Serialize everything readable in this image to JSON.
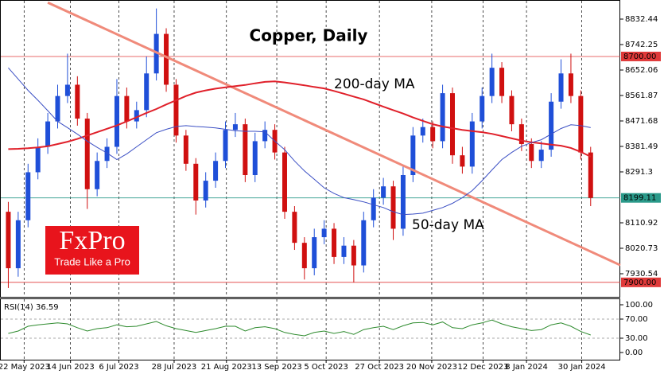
{
  "logo": {
    "brand": "FxPro",
    "tagline": "Trade Like a Pro"
  },
  "chart_data": [
    {
      "type": "candlestick",
      "title": "Copper, Daily",
      "up_color": "#1f4fd8",
      "down_color": "#d01010",
      "open": [
        8150,
        7950,
        8120,
        8290,
        8380,
        8470,
        8560,
        8600,
        8480,
        8230,
        8330,
        8380,
        8560,
        8470,
        8510,
        8640,
        8780,
        8600,
        8420,
        8320,
        8190,
        8260,
        8330,
        8440,
        8460,
        8280,
        8400,
        8440,
        8360,
        8150,
        8040,
        7950,
        8060,
        8090,
        7990,
        8030,
        7960,
        8120,
        8200,
        8240,
        8090,
        8280,
        8420,
        8450,
        8400,
        8570,
        8350,
        8310,
        8470,
        8560,
        8660,
        8560,
        8460,
        8390,
        8330,
        8370,
        8540,
        8640,
        8560,
        8360
      ],
      "high": [
        8185,
        8150,
        8320,
        8410,
        8500,
        8600,
        8710,
        8630,
        8500,
        8360,
        8410,
        8620,
        8590,
        8540,
        8700,
        8870,
        8800,
        8620,
        8440,
        8340,
        8290,
        8360,
        8470,
        8500,
        8480,
        8430,
        8470,
        8460,
        8380,
        8170,
        8060,
        8090,
        8120,
        8110,
        8060,
        8050,
        8150,
        8230,
        8270,
        8260,
        8310,
        8450,
        8480,
        8470,
        8600,
        8590,
        8380,
        8500,
        8590,
        8710,
        8680,
        8580,
        8480,
        8410,
        8400,
        8570,
        8690,
        8710,
        8580,
        8380
      ],
      "low": [
        7880,
        7920,
        8095,
        8265,
        8355,
        8445,
        8535,
        8455,
        8160,
        8205,
        8305,
        8355,
        8445,
        8445,
        8485,
        8615,
        8575,
        8395,
        8295,
        8140,
        8165,
        8235,
        8305,
        8415,
        8255,
        8255,
        8375,
        8335,
        8125,
        8015,
        7910,
        7925,
        8035,
        7965,
        7965,
        7900,
        7935,
        8095,
        8175,
        8050,
        8065,
        8255,
        8395,
        8375,
        8375,
        8320,
        8285,
        8285,
        8445,
        8535,
        8535,
        8435,
        8365,
        8305,
        8305,
        8345,
        8515,
        8535,
        8335,
        8170
      ],
      "close": [
        7950,
        8120,
        8290,
        8380,
        8470,
        8560,
        8600,
        8480,
        8230,
        8330,
        8380,
        8560,
        8470,
        8510,
        8640,
        8780,
        8600,
        8420,
        8320,
        8190,
        8260,
        8330,
        8440,
        8460,
        8280,
        8400,
        8440,
        8360,
        8150,
        8040,
        7950,
        8060,
        8090,
        7990,
        8030,
        7960,
        8120,
        8200,
        8240,
        8090,
        8280,
        8420,
        8450,
        8400,
        8570,
        8350,
        8310,
        8470,
        8560,
        8660,
        8560,
        8460,
        8390,
        8330,
        8370,
        8540,
        8640,
        8560,
        8360,
        8199.11
      ],
      "series": [
        {
          "name": "200-day MA",
          "color": "#e0202a",
          "values": [
            8372,
            8373,
            8375,
            8378,
            8382,
            8390,
            8398,
            8408,
            8420,
            8432,
            8444,
            8456,
            8470,
            8485,
            8500,
            8514,
            8530,
            8545,
            8560,
            8572,
            8580,
            8586,
            8591,
            8595,
            8599,
            8605,
            8610,
            8612,
            8608,
            8603,
            8598,
            8592,
            8587,
            8578,
            8568,
            8558,
            8548,
            8535,
            8522,
            8510,
            8498,
            8484,
            8472,
            8460,
            8452,
            8446,
            8440,
            8436,
            8432,
            8426,
            8418,
            8410,
            8402,
            8396,
            8392,
            8388,
            8384,
            8376,
            8362,
            8345
          ]
        },
        {
          "name": "50-day MA",
          "color": "#3b4fc4",
          "values": [
            8660,
            8620,
            8580,
            8545,
            8508,
            8470,
            8448,
            8425,
            8400,
            8378,
            8358,
            8335,
            8355,
            8380,
            8405,
            8430,
            8442,
            8452,
            8455,
            8452,
            8450,
            8447,
            8442,
            8437,
            8435,
            8435,
            8433,
            8400,
            8370,
            8330,
            8295,
            8265,
            8235,
            8215,
            8200,
            8193,
            8185,
            8175,
            8165,
            8150,
            8140,
            8142,
            8145,
            8155,
            8165,
            8180,
            8200,
            8225,
            8260,
            8298,
            8335,
            8360,
            8382,
            8395,
            8405,
            8425,
            8445,
            8458,
            8455,
            8448
          ]
        }
      ],
      "trendline": {
        "x": [
          4.0,
          62.0
        ],
        "values": [
          8891,
          7961
        ],
        "color": "#f08a7a"
      },
      "levels": [
        {
          "value": 8700,
          "label": "8700.00",
          "color": "#e03a3a"
        },
        {
          "value": 8199.11,
          "label": "8199.11",
          "color": "#2a9a8a"
        },
        {
          "value": 7900,
          "label": "7900.00",
          "color": "#e03a3a"
        }
      ],
      "xlim": [
        -0.6,
        62
      ],
      "ylim": [
        7851.6,
        8891.6
      ],
      "yticks": [
        8832.44,
        8742.25,
        8652.06,
        8561.87,
        8471.68,
        8381.49,
        8291.3,
        8110.92,
        8020.73,
        7930.54
      ],
      "xticks": [
        {
          "value": 1.6,
          "label": "22 May 2023"
        },
        {
          "value": 6.3,
          "label": "14 Jun 2023"
        },
        {
          "value": 11.2,
          "label": "6 Jul 2023"
        },
        {
          "value": 16.8,
          "label": "28 Jul 2023"
        },
        {
          "value": 22.1,
          "label": "21 Aug 2023"
        },
        {
          "value": 27.2,
          "label": "13 Sep 2023"
        },
        {
          "value": 32.2,
          "label": "5 Oct 2023"
        },
        {
          "value": 37.6,
          "label": "27 Oct 2023"
        },
        {
          "value": 42.9,
          "label": "20 Nov 2023"
        },
        {
          "value": 48.1,
          "label": "12 Dec 2023"
        },
        {
          "value": 52.5,
          "label": "8 Jan 2024"
        },
        {
          "value": 58.1,
          "label": "30 Jan 2024"
        }
      ]
    },
    {
      "type": "line",
      "label": "RSI(14) 36.59",
      "color": "#2e8b2e",
      "values": [
        40,
        45,
        55,
        58,
        60,
        62,
        60,
        52,
        45,
        50,
        52,
        58,
        54,
        55,
        60,
        65,
        56,
        50,
        46,
        42,
        46,
        50,
        55,
        55,
        45,
        52,
        54,
        50,
        42,
        38,
        35,
        42,
        45,
        40,
        44,
        38,
        48,
        52,
        55,
        48,
        56,
        62,
        63,
        58,
        64,
        52,
        50,
        58,
        62,
        68,
        60,
        54,
        50,
        46,
        48,
        58,
        62,
        55,
        44,
        36.59
      ],
      "ylim": [
        -15,
        111.67
      ],
      "yticks": [
        {
          "value": 100,
          "label": "100.00"
        },
        {
          "value": 70,
          "label": "70.00"
        },
        {
          "value": 30,
          "label": "30.00"
        },
        {
          "value": 0,
          "label": "0.00"
        }
      ]
    }
  ]
}
